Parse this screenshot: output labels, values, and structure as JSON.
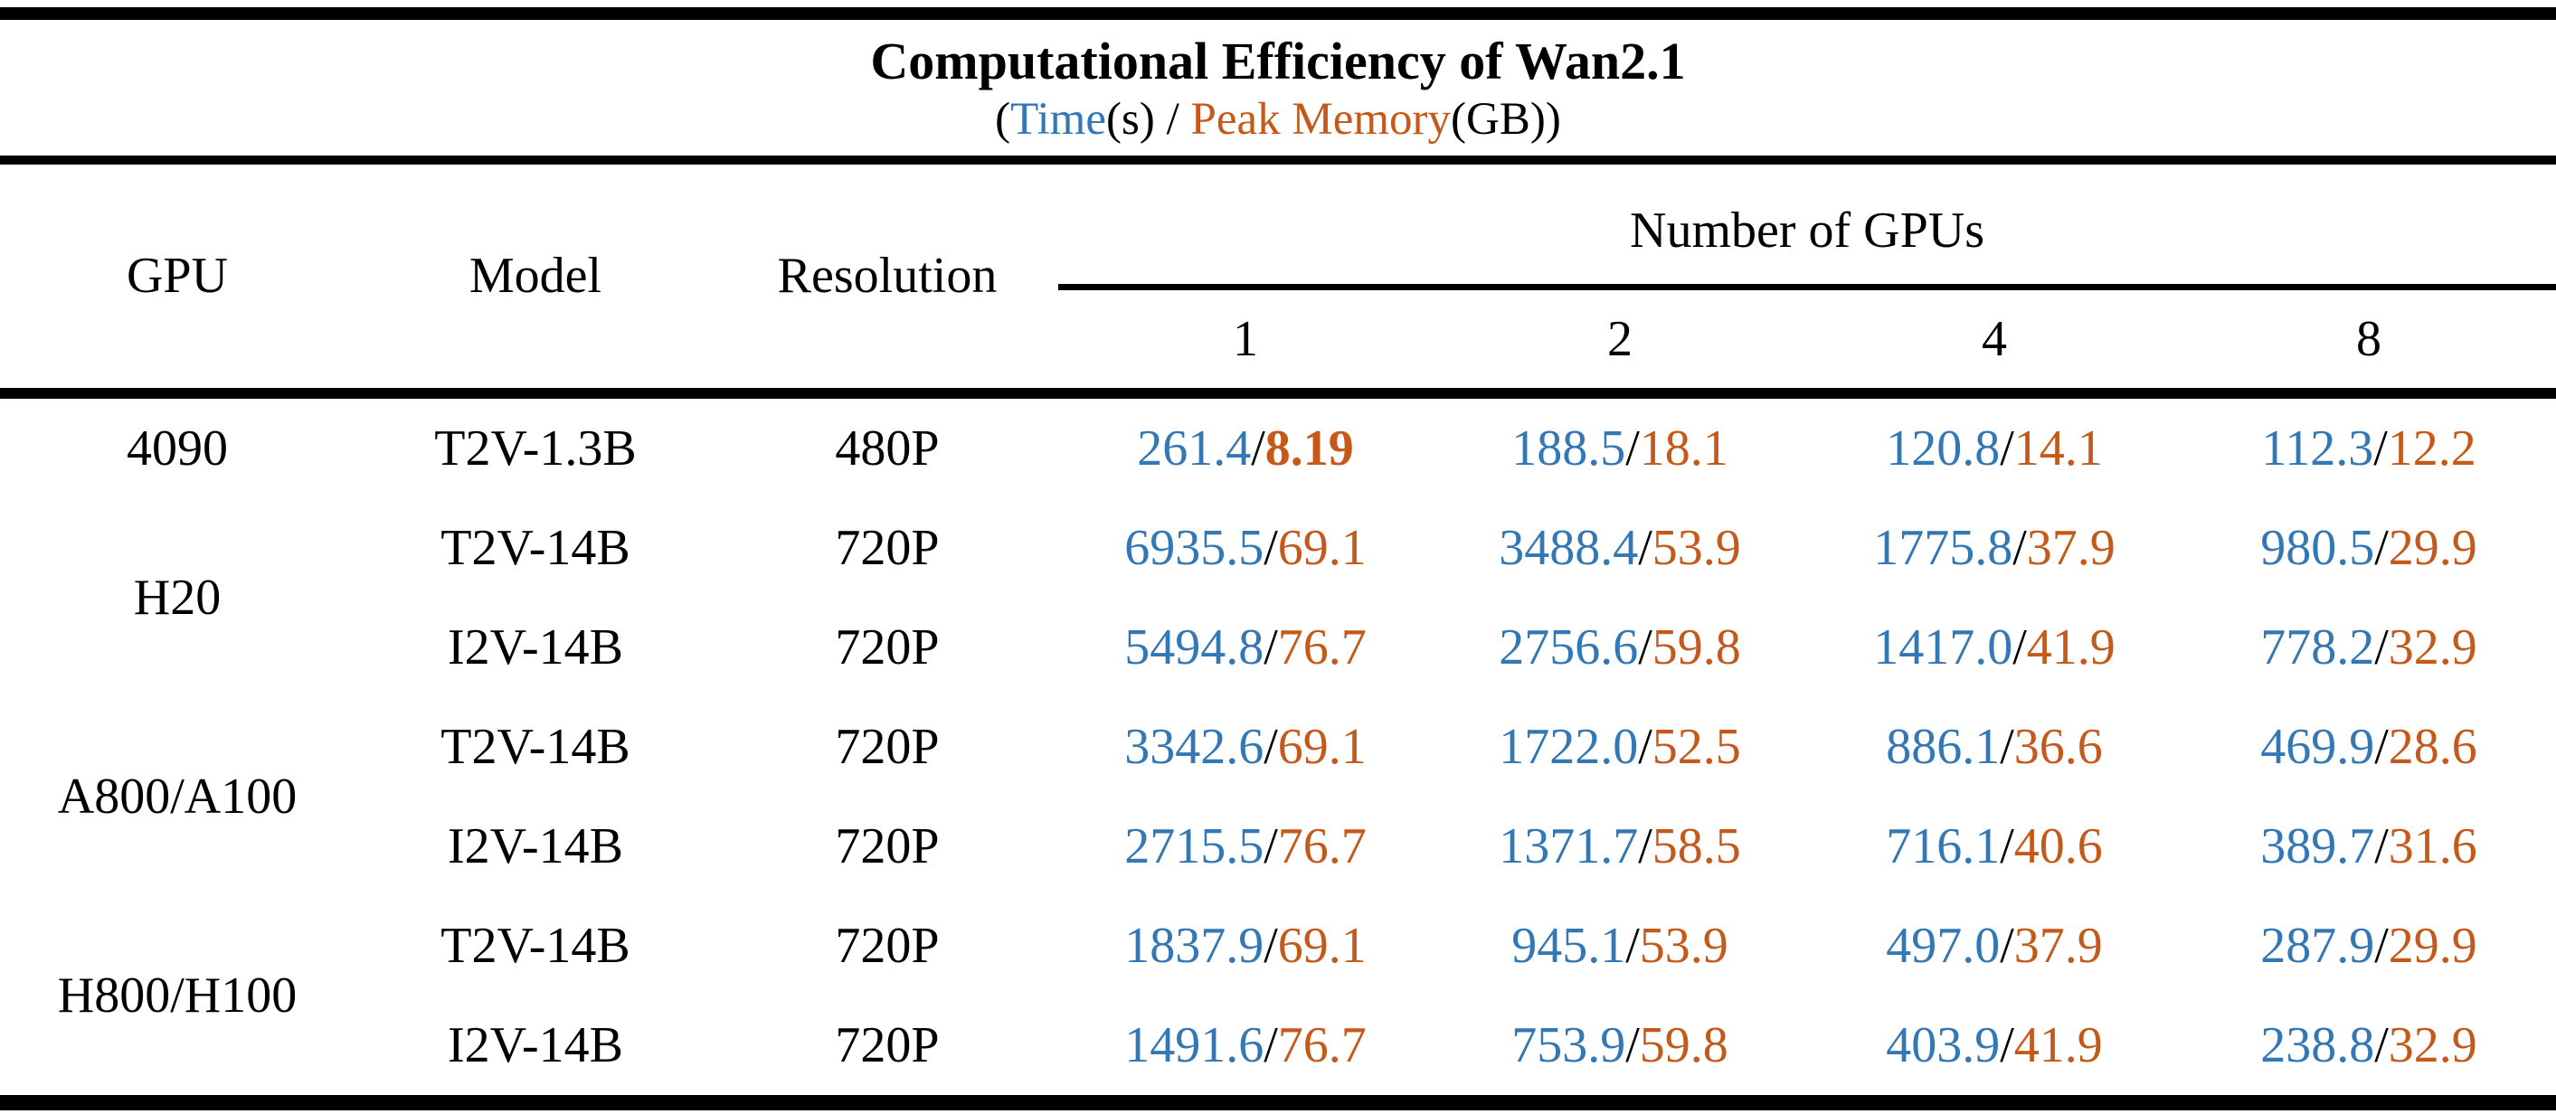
{
  "title": "Computational Efficiency of Wan2.1",
  "subtitle": {
    "open_paren": "(",
    "time_label": "Time",
    "time_unit": "(s)",
    "separator": " / ",
    "memory_label": "Peak Memory",
    "memory_unit": "(GB)",
    "close_paren": ")"
  },
  "colors": {
    "time_text": "#3377B5",
    "memory_text": "#C4591A",
    "rule": "#000000"
  },
  "slash": "/",
  "header": {
    "gpu": "GPU",
    "model": "Model",
    "resolution": "Resolution",
    "group": "Number of GPUs",
    "counts": [
      "1",
      "2",
      "4",
      "8"
    ]
  },
  "rows": [
    {
      "gpu": "4090",
      "model": "T2V-1.3B",
      "resolution": "480P",
      "cells": [
        {
          "time": "261.4",
          "mem": "8.19",
          "mem_bold": true
        },
        {
          "time": "188.5",
          "mem": "18.1"
        },
        {
          "time": "120.8",
          "mem": "14.1"
        },
        {
          "time": "112.3",
          "mem": "12.2"
        }
      ]
    },
    {
      "gpu": "H20",
      "model": "T2V-14B",
      "resolution": "720P",
      "cells": [
        {
          "time": "6935.5",
          "mem": "69.1"
        },
        {
          "time": "3488.4",
          "mem": "53.9"
        },
        {
          "time": "1775.8",
          "mem": "37.9"
        },
        {
          "time": "980.5",
          "mem": "29.9"
        }
      ]
    },
    {
      "model": "I2V-14B",
      "resolution": "720P",
      "cells": [
        {
          "time": "5494.8",
          "mem": "76.7"
        },
        {
          "time": "2756.6",
          "mem": "59.8"
        },
        {
          "time": "1417.0",
          "mem": "41.9"
        },
        {
          "time": "778.2",
          "mem": "32.9"
        }
      ]
    },
    {
      "gpu": "A800/A100",
      "model": "T2V-14B",
      "resolution": "720P",
      "cells": [
        {
          "time": "3342.6",
          "mem": "69.1"
        },
        {
          "time": "1722.0",
          "mem": "52.5"
        },
        {
          "time": "886.1",
          "mem": "36.6"
        },
        {
          "time": "469.9",
          "mem": "28.6"
        }
      ]
    },
    {
      "model": "I2V-14B",
      "resolution": "720P",
      "cells": [
        {
          "time": "2715.5",
          "mem": "76.7"
        },
        {
          "time": "1371.7",
          "mem": "58.5"
        },
        {
          "time": "716.1",
          "mem": "40.6"
        },
        {
          "time": "389.7",
          "mem": "31.6"
        }
      ]
    },
    {
      "gpu": "H800/H100",
      "model": "T2V-14B",
      "resolution": "720P",
      "cells": [
        {
          "time": "1837.9",
          "mem": "69.1"
        },
        {
          "time": "945.1",
          "mem": "53.9"
        },
        {
          "time": "497.0",
          "mem": "37.9"
        },
        {
          "time": "287.9",
          "mem": "29.9"
        }
      ]
    },
    {
      "model": "I2V-14B",
      "resolution": "720P",
      "cells": [
        {
          "time": "1491.6",
          "mem": "76.7"
        },
        {
          "time": "753.9",
          "mem": "59.8"
        },
        {
          "time": "403.9",
          "mem": "41.9"
        },
        {
          "time": "238.8",
          "mem": "32.9"
        }
      ]
    }
  ]
}
